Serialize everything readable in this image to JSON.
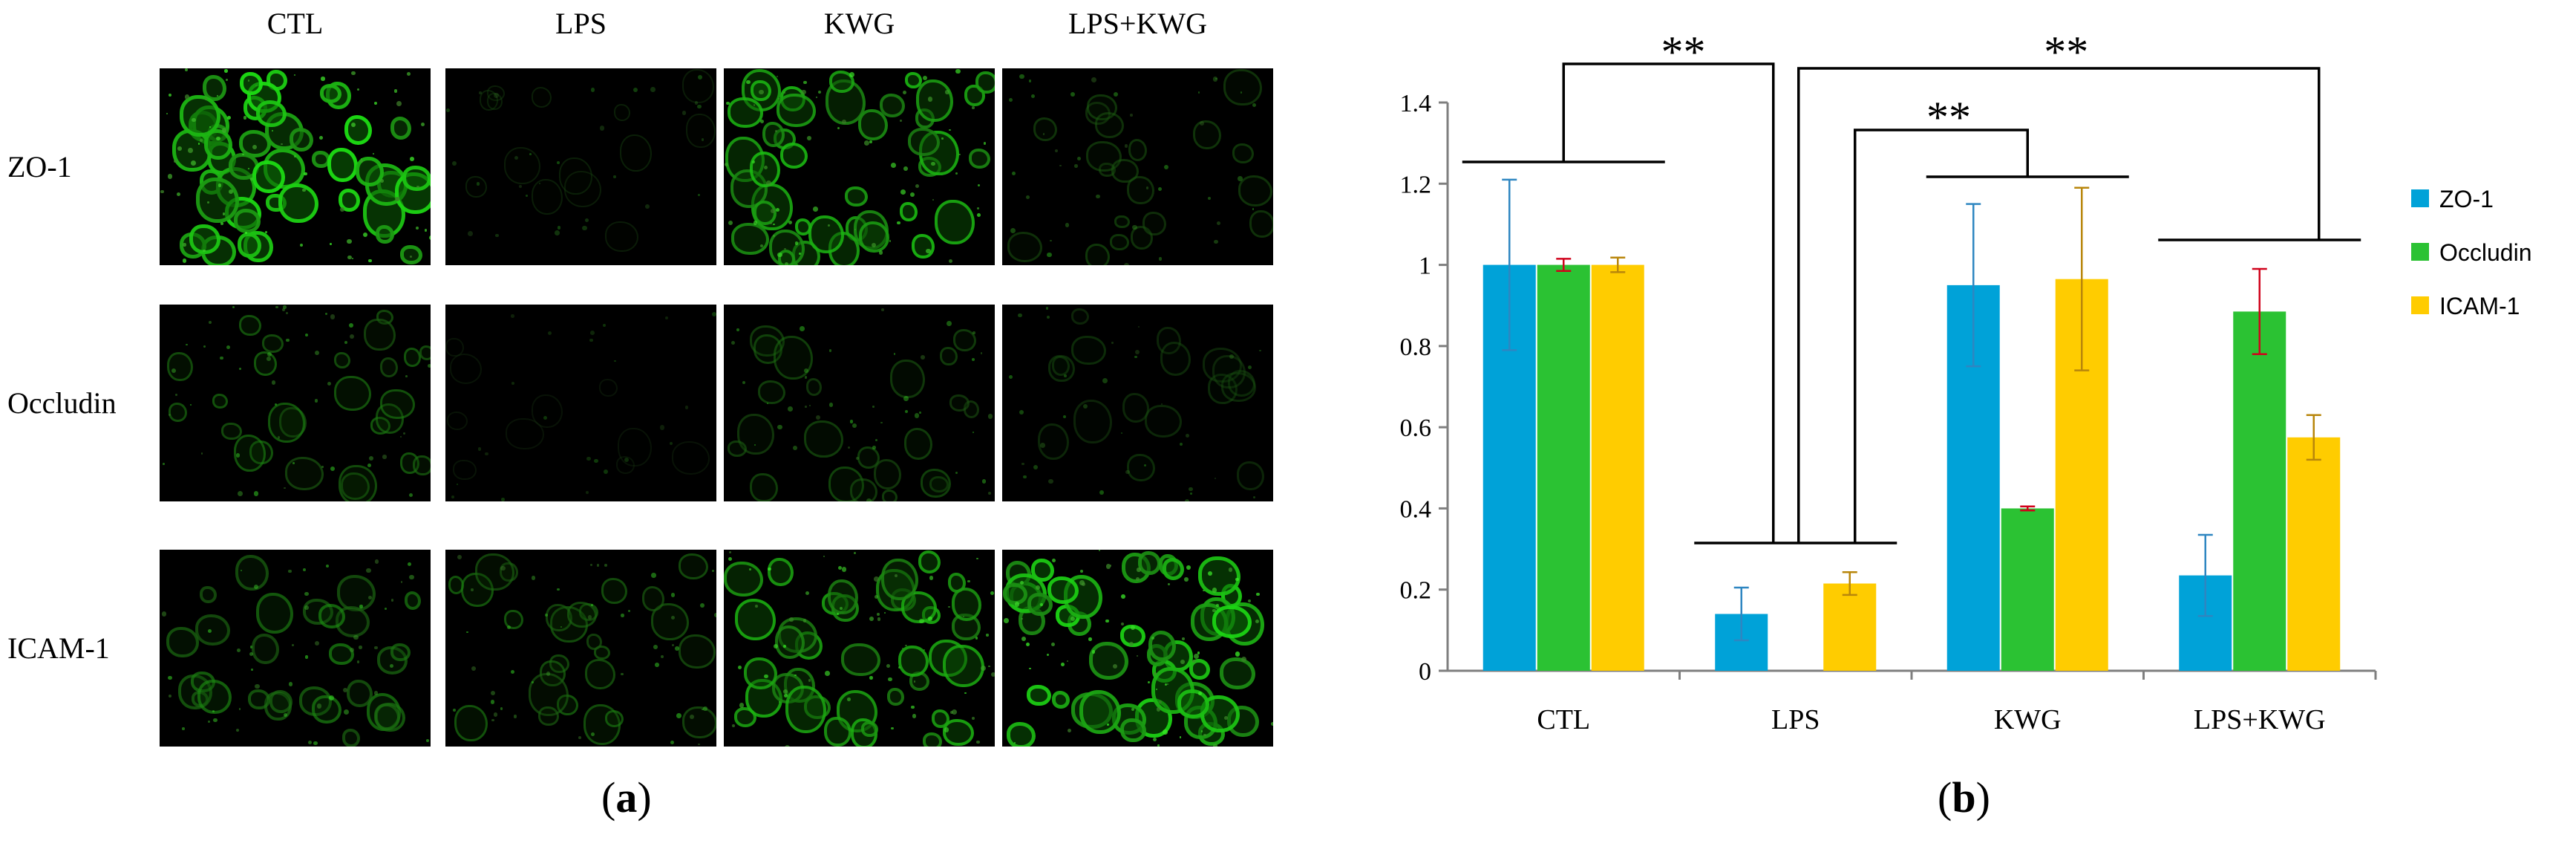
{
  "panel_a": {
    "columns": [
      "CTL",
      "LPS",
      "KWG",
      "LPS+KWG"
    ],
    "rows": [
      "ZO-1",
      "Occludin",
      "ICAM-1"
    ],
    "tag": "a",
    "image_brightness": [
      [
        0.95,
        0.15,
        0.8,
        0.3
      ],
      [
        0.45,
        0.05,
        0.35,
        0.22
      ],
      [
        0.5,
        0.45,
        0.75,
        0.9
      ]
    ]
  },
  "panel_b_tag": "b",
  "significance_mark": "**",
  "chart_data": {
    "type": "bar",
    "categories": [
      "CTL",
      "LPS",
      "KWG",
      "LPS+KWG"
    ],
    "series": [
      {
        "name": "ZO-1",
        "values": [
          1.0,
          0.14,
          0.95,
          0.235
        ],
        "errors": [
          0.21,
          0.065,
          0.2,
          0.1
        ]
      },
      {
        "name": "Occludin",
        "values": [
          1.0,
          0.0,
          0.4,
          0.885
        ],
        "errors": [
          0.015,
          0.0,
          0.005,
          0.105
        ]
      },
      {
        "name": "ICAM-1",
        "values": [
          1.0,
          0.215,
          0.965,
          0.575
        ],
        "errors": [
          0.018,
          0.028,
          0.225,
          0.055
        ]
      }
    ],
    "colors": {
      "ZO-1": "#00A2D8",
      "Occludin": "#2BC233",
      "ICAM-1": "#FFCC00"
    },
    "error_colors": {
      "ZO-1": "#2E86C1",
      "Occludin": "#D0021B",
      "ICAM-1": "#B8860B"
    },
    "ylim": [
      0,
      1.4
    ],
    "yticks": [
      "0",
      "0.2",
      "0.4",
      "0.6",
      "0.8",
      "1",
      "1.2",
      "1.4"
    ],
    "legend_position": "right",
    "grid": false,
    "significance": [
      {
        "from": "CTL",
        "to": "LPS",
        "label": "**"
      },
      {
        "from": "LPS",
        "to": "KWG",
        "label": "**"
      },
      {
        "from": "LPS",
        "to": "LPS+KWG",
        "label": "**"
      }
    ]
  }
}
